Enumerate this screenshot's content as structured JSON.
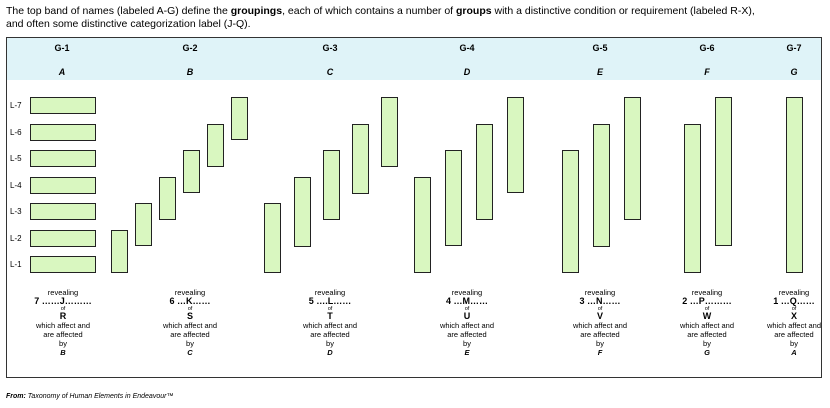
{
  "intro": {
    "line1_pre": "The top band of names (labeled A-G) define the ",
    "line1_bold1": "groupings",
    "line1_mid": ", each of which contains a number of ",
    "line1_bold2": "groups",
    "line1_post": " with a distinctive condition or requirement (labeled R-X),",
    "line2": "and often some distinctive categorization label  (J-Q)."
  },
  "columns": [
    {
      "head": "G-1",
      "letter": "A"
    },
    {
      "head": "G-2",
      "letter": "B"
    },
    {
      "head": "G-3",
      "letter": "C"
    },
    {
      "head": "G-4",
      "letter": "D"
    },
    {
      "head": "G-5",
      "letter": "E"
    },
    {
      "head": "G-6",
      "letter": "F"
    },
    {
      "head": "G-7",
      "letter": "G"
    }
  ],
  "levels": [
    "L-7",
    "L-6",
    "L-5",
    "L-4",
    "L-3",
    "L-2",
    "L-1"
  ],
  "captions": [
    {
      "revealing": "revealing",
      "count": "7 ……J………",
      "of": "of",
      "cond": "R",
      "which": "which affect and",
      "are": "are affected",
      "by": "by",
      "by_letter": "B"
    },
    {
      "revealing": "revealing",
      "count": "6 …K……",
      "of": "of",
      "cond": "S",
      "which": "which affect and",
      "are": "are affected",
      "by": "by",
      "by_letter": "C"
    },
    {
      "revealing": "revealing",
      "count": "5 ….L……",
      "of": "of",
      "cond": "T",
      "which": "which affect and",
      "are": "are affected",
      "by": "by",
      "by_letter": "D"
    },
    {
      "revealing": "revealing",
      "count": "4 …M……",
      "of": "of",
      "cond": "U",
      "which": "which affect and",
      "are": "are affected",
      "by": "by",
      "by_letter": "E"
    },
    {
      "revealing": "revealing",
      "count": "3 …N……",
      "of": "of",
      "cond": "V",
      "which": "which affect and",
      "are": "are affected",
      "by": "by",
      "by_letter": "F"
    },
    {
      "revealing": "revealing",
      "count": "2 …P………",
      "of": "of",
      "cond": "W",
      "which": "which affect and",
      "are": "are affected",
      "by": "by",
      "by_letter": "G"
    },
    {
      "revealing": "revealing",
      "count": "1 …Q……",
      "of": "of",
      "cond": "X",
      "which": "which affect and",
      "are": "are affected",
      "by": "by",
      "by_letter": "A"
    }
  ],
  "source": {
    "label": "From:",
    "text": " Taxonomy of Human Elements in Endeavour™"
  },
  "colors": {
    "band": "#dff3f8",
    "bar_fill": "#d9f7c0",
    "border": "#222222"
  }
}
